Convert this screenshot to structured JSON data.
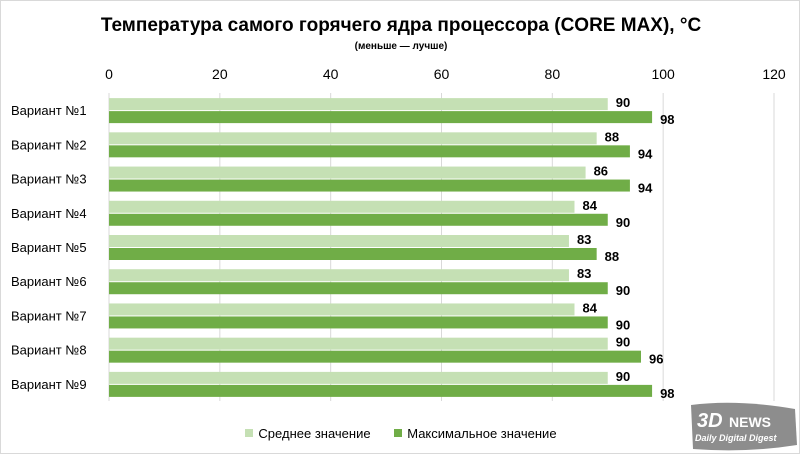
{
  "chart_data": {
    "type": "bar",
    "orientation": "horizontal",
    "title": "Температура самого горячего ядра процессора (CORE MAX), °C",
    "subtitle": "(меньше — лучше)",
    "categories": [
      "Вариант №1",
      "Вариант №2",
      "Вариант №3",
      "Вариант №4",
      "Вариант №5",
      "Вариант №6",
      "Вариант №7",
      "Вариант №8",
      "Вариант №9"
    ],
    "series": [
      {
        "name": "Среднее значение",
        "color": "#c5e0b4",
        "values": [
          90,
          88,
          86,
          84,
          83,
          83,
          84,
          90,
          90
        ]
      },
      {
        "name": "Максимальное значение",
        "color": "#70ad47",
        "values": [
          98,
          94,
          94,
          90,
          88,
          90,
          90,
          96,
          98
        ]
      }
    ],
    "xlim": [
      0,
      120
    ],
    "xticks": [
      0,
      20,
      40,
      60,
      80,
      100,
      120
    ],
    "axis_position": "top",
    "grid": true,
    "legend": "bottom"
  },
  "watermark": {
    "text": "3DNEWS",
    "tagline": "Daily Digital Digest"
  }
}
